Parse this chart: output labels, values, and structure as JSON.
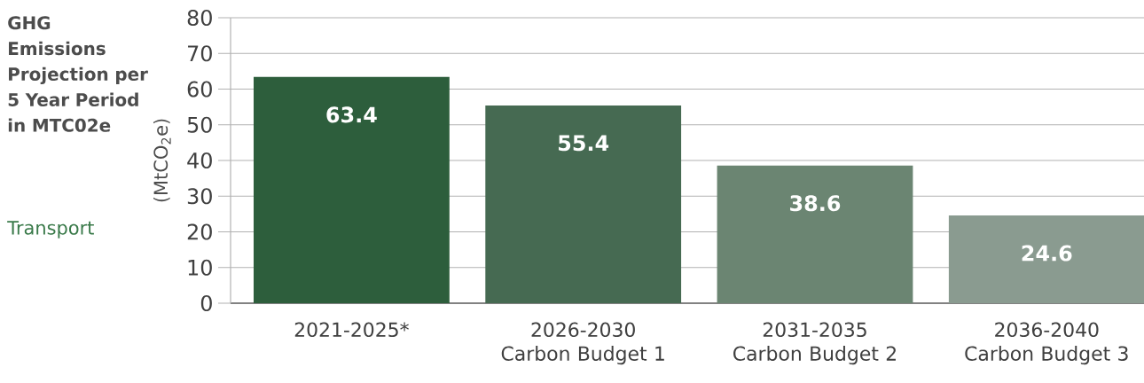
{
  "chart_data": {
    "type": "bar",
    "title": "GHG Emissions Projection per 5 Year Period in MTC02e",
    "subtitle": "Transport",
    "ylabel": "(MtCO$_{2}$e)",
    "categories": [
      "2021-2025*",
      "2026-2030 Carbon Budget 1",
      "2031-2035 Carbon Budget 2",
      "2036-2040 Carbon Budget 3"
    ],
    "values": [
      63.4,
      55.4,
      38.6,
      24.6
    ],
    "colors": [
      "#2d5e3c",
      "#466a52",
      "#6b8572",
      "#8a9b90"
    ],
    "ylim": [
      0,
      80
    ],
    "yticks": [
      0,
      10,
      20,
      30,
      40,
      50,
      60,
      70,
      80
    ],
    "grid": "y",
    "data_labels": true
  }
}
